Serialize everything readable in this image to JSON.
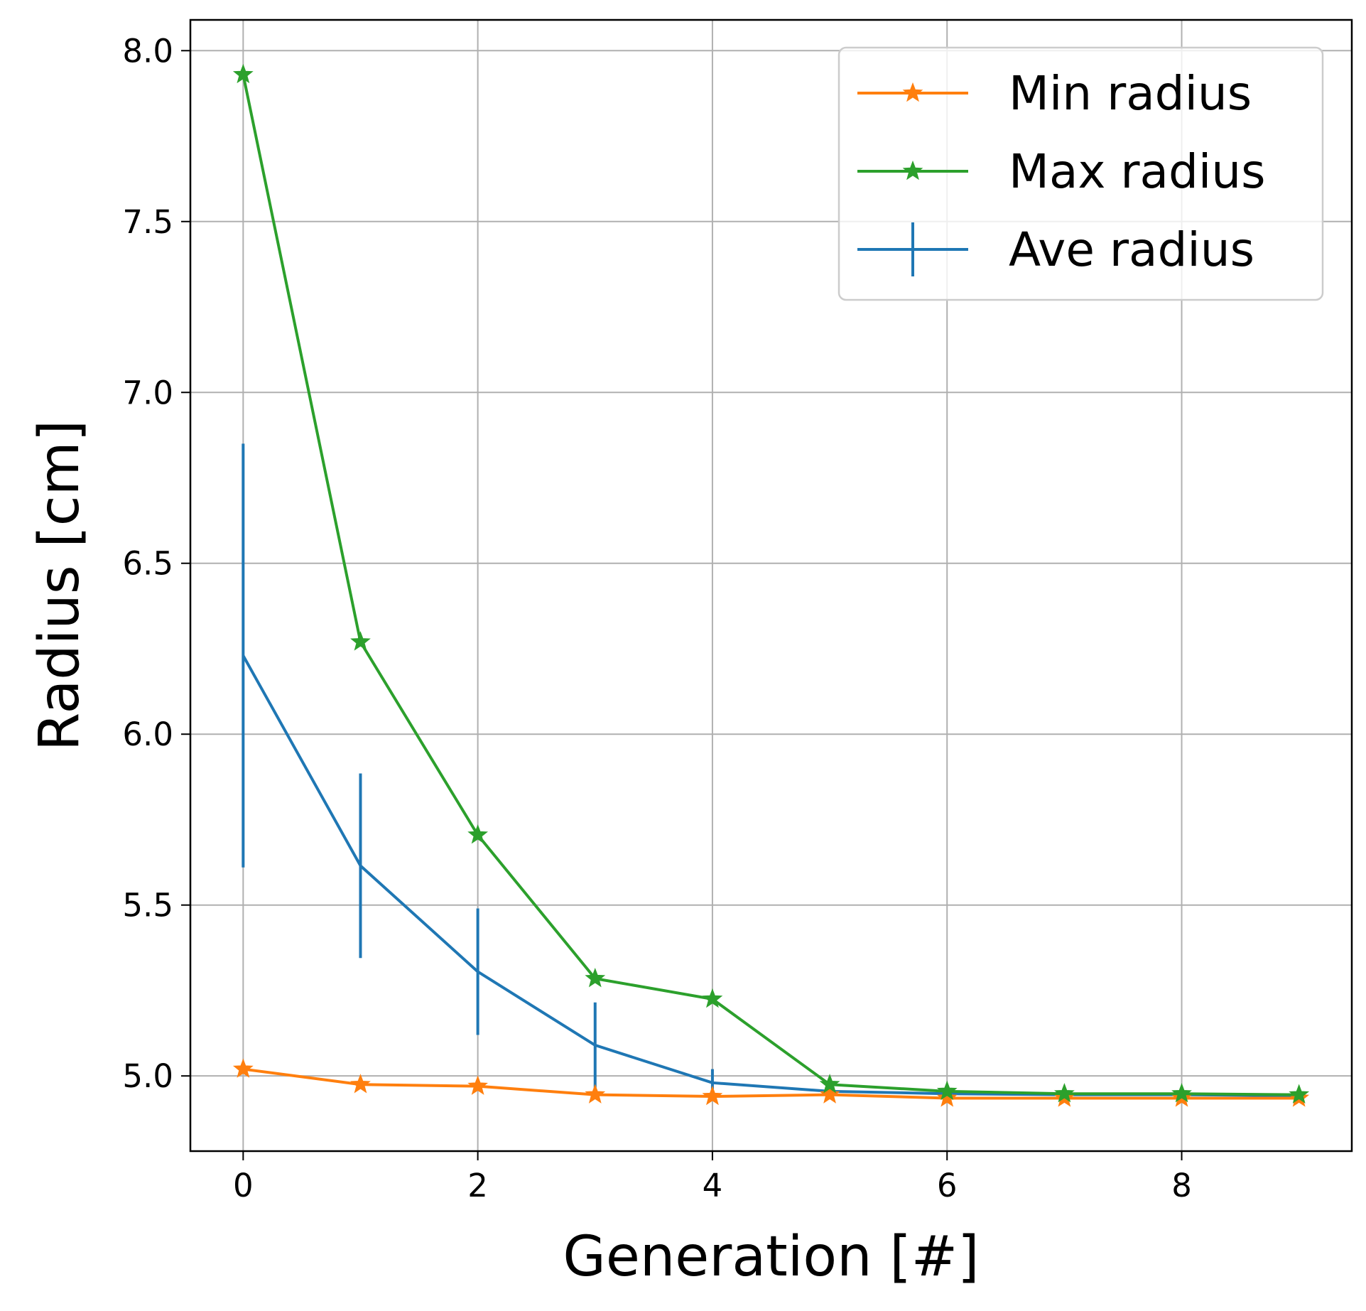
{
  "chart_data": {
    "type": "line",
    "title": "",
    "xlabel": "Generation [#]",
    "ylabel": "Radius [cm]",
    "xlim": [
      -0.45,
      9.45
    ],
    "ylim": [
      4.78,
      8.09
    ],
    "xticks": [
      0,
      2,
      4,
      6,
      8
    ],
    "xtick_labels": [
      "0",
      "2",
      "4",
      "6",
      "8"
    ],
    "yticks": [
      5.0,
      5.5,
      6.0,
      6.5,
      7.0,
      7.5,
      8.0
    ],
    "ytick_labels": [
      "5.0",
      "5.5",
      "6.0",
      "6.5",
      "7.0",
      "7.5",
      "8.0"
    ],
    "grid": true,
    "legend_position": "top-right",
    "x": [
      0,
      1,
      2,
      3,
      4,
      5,
      6,
      7,
      8,
      9
    ],
    "series": [
      {
        "name": "Min radius",
        "color": "#ff7f0e",
        "marker": "star",
        "values": [
          5.02,
          4.975,
          4.97,
          4.945,
          4.94,
          4.945,
          4.935,
          4.935,
          4.935,
          4.935
        ]
      },
      {
        "name": "Max radius",
        "color": "#2ca02c",
        "marker": "star",
        "values": [
          7.93,
          6.27,
          5.705,
          5.285,
          5.225,
          4.975,
          4.955,
          4.948,
          4.948,
          4.945
        ]
      },
      {
        "name": "Ave radius",
        "color": "#1f77b4",
        "marker": "errorbar",
        "values": [
          6.23,
          5.615,
          5.305,
          5.09,
          4.98,
          4.955,
          4.948,
          4.945,
          4.945,
          4.942
        ],
        "errors": [
          0.62,
          0.27,
          0.185,
          0.125,
          0.04,
          0.01,
          0.005,
          0.003,
          0.003,
          0.003
        ]
      }
    ]
  }
}
